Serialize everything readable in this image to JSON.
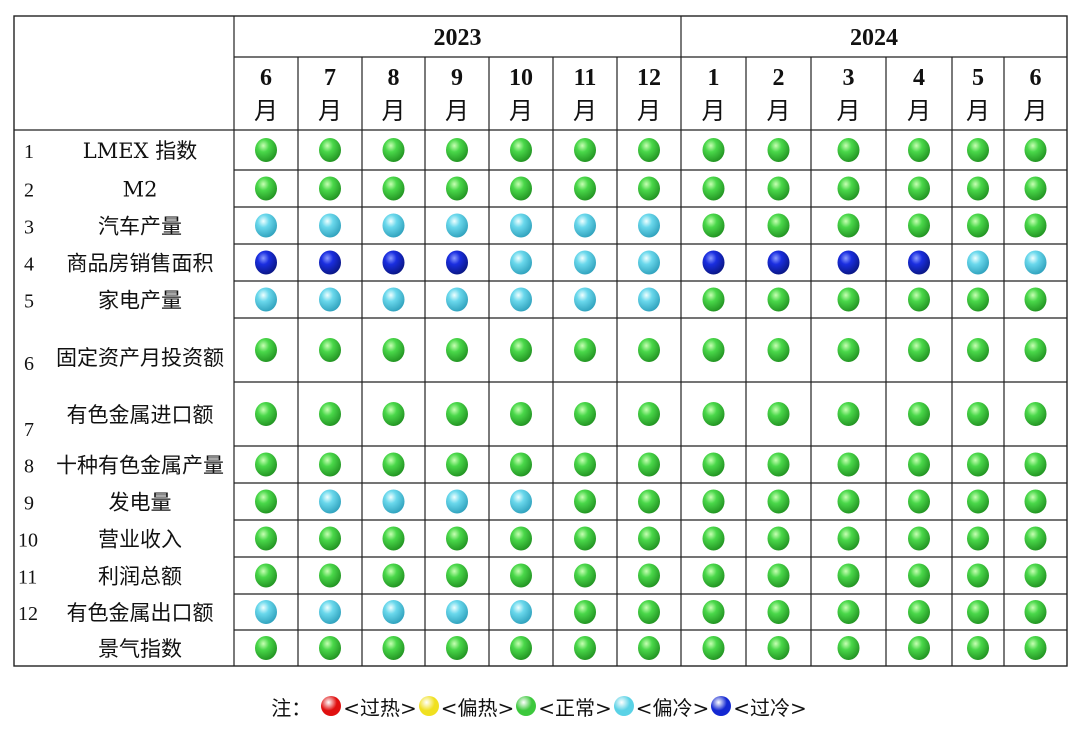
{
  "chart_data": {
    "type": "table",
    "years": [
      {
        "label": "2023",
        "span": 7
      },
      {
        "label": "2024",
        "span": 6
      }
    ],
    "months": [
      {
        "num": "6",
        "unit": "月"
      },
      {
        "num": "7",
        "unit": "月"
      },
      {
        "num": "8",
        "unit": "月"
      },
      {
        "num": "9",
        "unit": "月"
      },
      {
        "num": "10",
        "unit": "月"
      },
      {
        "num": "11",
        "unit": "月"
      },
      {
        "num": "12",
        "unit": "月"
      },
      {
        "num": "1",
        "unit": "月"
      },
      {
        "num": "2",
        "unit": "月"
      },
      {
        "num": "3",
        "unit": "月"
      },
      {
        "num": "4",
        "unit": "月"
      },
      {
        "num": "5",
        "unit": "月"
      },
      {
        "num": "6",
        "unit": "月"
      }
    ],
    "rows": [
      {
        "index": "1",
        "name": "LMEX 指数",
        "status": [
          "normal",
          "normal",
          "normal",
          "normal",
          "normal",
          "normal",
          "normal",
          "normal",
          "normal",
          "normal",
          "normal",
          "normal",
          "normal"
        ]
      },
      {
        "index": "2",
        "name": "M2",
        "status": [
          "normal",
          "normal",
          "normal",
          "normal",
          "normal",
          "normal",
          "normal",
          "normal",
          "normal",
          "normal",
          "normal",
          "normal",
          "normal"
        ]
      },
      {
        "index": "3",
        "name": "汽车产量",
        "status": [
          "cool",
          "cool",
          "cool",
          "cool",
          "cool",
          "cool",
          "cool",
          "normal",
          "normal",
          "normal",
          "normal",
          "normal",
          "normal"
        ]
      },
      {
        "index": "4",
        "name": "商品房销售面积",
        "status": [
          "cold",
          "cold",
          "cold",
          "cold",
          "cool",
          "cool",
          "cool",
          "cold",
          "cold",
          "cold",
          "cold",
          "cool",
          "cool"
        ]
      },
      {
        "index": "5",
        "name": "家电产量",
        "status": [
          "cool",
          "cool",
          "cool",
          "cool",
          "cool",
          "cool",
          "cool",
          "normal",
          "normal",
          "normal",
          "normal",
          "normal",
          "normal"
        ]
      },
      {
        "index": "6",
        "name": "固定资产月投资额",
        "status": [
          "normal",
          "normal",
          "normal",
          "normal",
          "normal",
          "normal",
          "normal",
          "normal",
          "normal",
          "normal",
          "normal",
          "normal",
          "normal"
        ]
      },
      {
        "index": "7",
        "name": "有色金属进口额",
        "status": [
          "normal",
          "normal",
          "normal",
          "normal",
          "normal",
          "normal",
          "normal",
          "normal",
          "normal",
          "normal",
          "normal",
          "normal",
          "normal"
        ]
      },
      {
        "index": "8",
        "name": "十种有色金属产量",
        "status": [
          "normal",
          "normal",
          "normal",
          "normal",
          "normal",
          "normal",
          "normal",
          "normal",
          "normal",
          "normal",
          "normal",
          "normal",
          "normal"
        ]
      },
      {
        "index": "9",
        "name": "发电量",
        "status": [
          "normal",
          "cool",
          "cool",
          "cool",
          "cool",
          "normal",
          "normal",
          "normal",
          "normal",
          "normal",
          "normal",
          "normal",
          "normal"
        ]
      },
      {
        "index": "10",
        "name": "营业收入",
        "status": [
          "normal",
          "normal",
          "normal",
          "normal",
          "normal",
          "normal",
          "normal",
          "normal",
          "normal",
          "normal",
          "normal",
          "normal",
          "normal"
        ]
      },
      {
        "index": "11",
        "name": "利润总额",
        "status": [
          "normal",
          "normal",
          "normal",
          "normal",
          "normal",
          "normal",
          "normal",
          "normal",
          "normal",
          "normal",
          "normal",
          "normal",
          "normal"
        ]
      },
      {
        "index": "12",
        "name": "有色金属出口额",
        "status": [
          "cool",
          "cool",
          "cool",
          "cool",
          "cool",
          "normal",
          "normal",
          "normal",
          "normal",
          "normal",
          "normal",
          "normal",
          "normal"
        ]
      },
      {
        "index": "",
        "name": "景气指数",
        "status": [
          "normal",
          "normal",
          "normal",
          "normal",
          "normal",
          "normal",
          "normal",
          "normal",
          "normal",
          "normal",
          "normal",
          "normal",
          "normal"
        ]
      }
    ]
  },
  "legend": {
    "note": "注：",
    "items": [
      {
        "key": "hot",
        "label": "<过热>",
        "color": "#e01010"
      },
      {
        "key": "warm",
        "label": "<偏热>",
        "color": "#f0e020"
      },
      {
        "key": "normal",
        "label": "<正常>",
        "color": "#3cc83c"
      },
      {
        "key": "cool",
        "label": "<偏冷>",
        "color": "#5ad2e6"
      },
      {
        "key": "cold",
        "label": "<过冷>",
        "color": "#1428d2"
      }
    ]
  }
}
